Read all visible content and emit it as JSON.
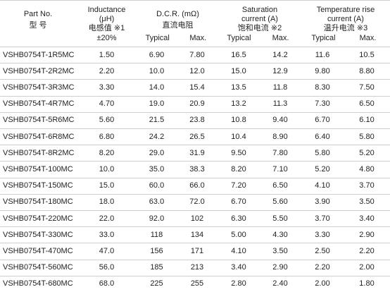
{
  "table": {
    "header_groups": [
      {
        "lines": [
          "Part No.",
          "型 号"
        ],
        "sub": []
      },
      {
        "lines": [
          "Inductance",
          "(μH)",
          "电感值 ※1"
        ],
        "sub": [
          "±20%"
        ]
      },
      {
        "lines": [
          "D.C.R. (mΩ)",
          "直流电阻"
        ],
        "sub": [
          "Typical",
          "Max."
        ]
      },
      {
        "lines": [
          "Saturation",
          "current (A)",
          "饱和电流 ※2"
        ],
        "sub": [
          "Typical",
          "Max."
        ]
      },
      {
        "lines": [
          "Temperature rise",
          "current (A)",
          "温升电流 ※3"
        ],
        "sub": [
          "Typical",
          "Max."
        ]
      }
    ],
    "rows": [
      [
        "VSHB0754T-1R5MC",
        "1.50",
        "6.90",
        "7.80",
        "16.5",
        "14.2",
        "11.6",
        "10.5"
      ],
      [
        "VSHB0754T-2R2MC",
        "2.20",
        "10.0",
        "12.0",
        "15.0",
        "12.9",
        "9.80",
        "8.80"
      ],
      [
        "VSHB0754T-3R3MC",
        "3.30",
        "14.0",
        "15.4",
        "13.5",
        "11.8",
        "8.30",
        "7.50"
      ],
      [
        "VSHB0754T-4R7MC",
        "4.70",
        "19.0",
        "20.9",
        "13.2",
        "11.3",
        "7.30",
        "6.50"
      ],
      [
        "VSHB0754T-5R6MC",
        "5.60",
        "21.5",
        "23.8",
        "10.8",
        "9.40",
        "6.70",
        "6.10"
      ],
      [
        "VSHB0754T-6R8MC",
        "6.80",
        "24.2",
        "26.5",
        "10.4",
        "8.90",
        "6.40",
        "5.80"
      ],
      [
        "VSHB0754T-8R2MC",
        "8.20",
        "29.0",
        "31.9",
        "9.50",
        "7.80",
        "5.80",
        "5.20"
      ],
      [
        "VSHB0754T-100MC",
        "10.0",
        "35.0",
        "38.3",
        "8.20",
        "7.10",
        "5.20",
        "4.80"
      ],
      [
        "VSHB0754T-150MC",
        "15.0",
        "60.0",
        "66.0",
        "7.20",
        "6.50",
        "4.10",
        "3.70"
      ],
      [
        "VSHB0754T-180MC",
        "18.0",
        "63.0",
        "72.0",
        "6.70",
        "5.60",
        "3.90",
        "3.50"
      ],
      [
        "VSHB0754T-220MC",
        "22.0",
        "92.0",
        "102",
        "6.30",
        "5.50",
        "3.70",
        "3.40"
      ],
      [
        "VSHB0754T-330MC",
        "33.0",
        "118",
        "134",
        "5.00",
        "4.30",
        "3.30",
        "2.90"
      ],
      [
        "VSHB0754T-470MC",
        "47.0",
        "156",
        "171",
        "4.10",
        "3.50",
        "2.50",
        "2.20"
      ],
      [
        "VSHB0754T-560MC",
        "56.0",
        "185",
        "213",
        "3.40",
        "2.90",
        "2.20",
        "2.00"
      ],
      [
        "VSHB0754T-680MC",
        "68.0",
        "225",
        "255",
        "2.80",
        "2.40",
        "2.00",
        "1.80"
      ]
    ]
  }
}
